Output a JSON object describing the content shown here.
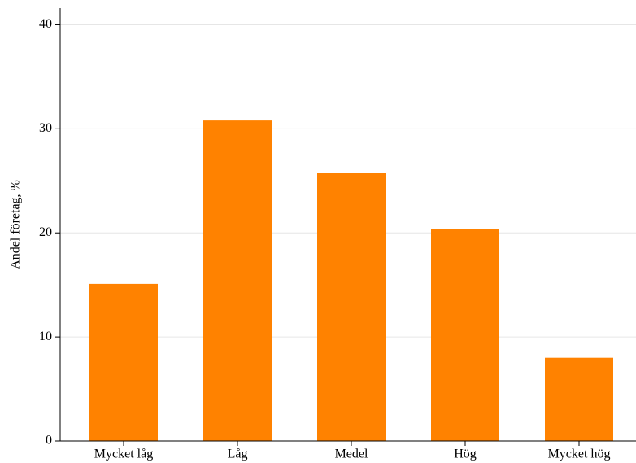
{
  "chart_data": {
    "type": "bar",
    "y_label": "Andel företag, %",
    "categories": [
      "Mycket låg",
      "Låg",
      "Medel",
      "Hög",
      "Mycket hög"
    ],
    "values": [
      15.1,
      30.8,
      25.8,
      20.4,
      8.0
    ],
    "color": "#ff8200",
    "ylim": [
      0,
      41.6
    ],
    "yticks": [
      0,
      10,
      20,
      30,
      40
    ],
    "grid": true
  }
}
